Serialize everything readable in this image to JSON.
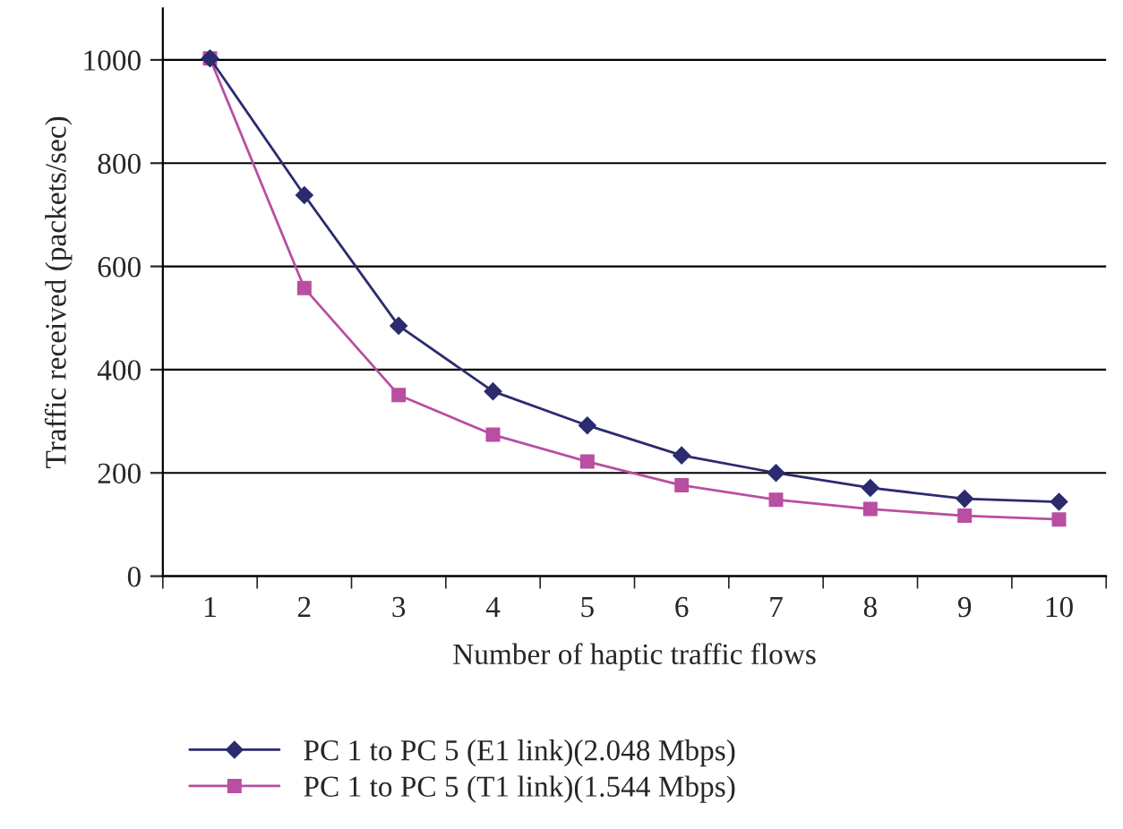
{
  "chart_data": {
    "type": "line",
    "xlabel": "Number of haptic traffic flows",
    "ylabel": "Traffic received (packets/sec)",
    "categories": [
      "1",
      "2",
      "3",
      "4",
      "5",
      "6",
      "7",
      "8",
      "9",
      "10"
    ],
    "series": [
      {
        "name": "PC 1 to PC 5 (E1 link)(2.048 Mbps)",
        "color": "#2b2b6e",
        "marker": "diamond",
        "values": [
          1003,
          738,
          485,
          358,
          292,
          234,
          200,
          171,
          150,
          144
        ]
      },
      {
        "name": "PC 1 to PC 5 (T1 link)(1.544 Mbps)",
        "color": "#b84fa0",
        "marker": "square",
        "values": [
          1003,
          558,
          351,
          274,
          222,
          176,
          148,
          130,
          117,
          110
        ]
      }
    ],
    "ylim": [
      0,
      1100
    ],
    "yticks": [
      0,
      200,
      400,
      600,
      800,
      1000
    ],
    "grid": "y",
    "legend": "bottom"
  }
}
